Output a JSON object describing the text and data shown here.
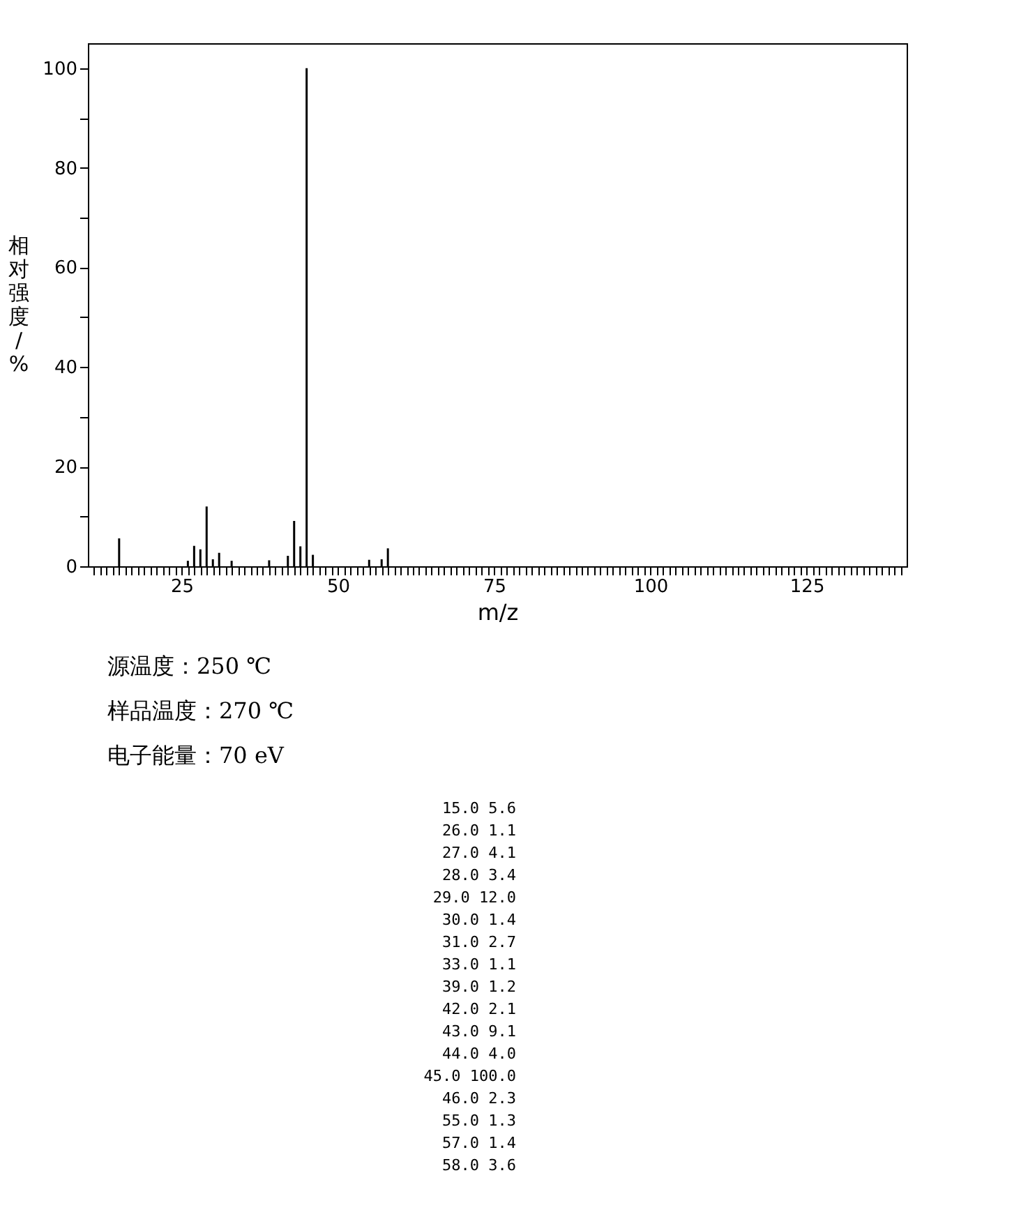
{
  "chart_data": [
    {
      "type": "bar",
      "xlabel": "m/z",
      "ylabel": "相对强度/%",
      "x": [
        15,
        26,
        27,
        28,
        29,
        30,
        31,
        33,
        39,
        42,
        43,
        44,
        45,
        46,
        55,
        57,
        58
      ],
      "values": [
        5.6,
        1.1,
        4.1,
        3.4,
        12.0,
        1.4,
        2.7,
        1.1,
        1.2,
        2.1,
        9.1,
        4.0,
        100.0,
        2.3,
        1.3,
        1.4,
        3.6
      ],
      "color": "#000000",
      "xlim": [
        10,
        141
      ],
      "ylim": [
        0,
        105
      ],
      "xticks": [
        {
          "value": 11,
          "label": null
        },
        {
          "value": 12,
          "label": null
        },
        {
          "value": 13,
          "label": null
        },
        {
          "value": 14,
          "label": null
        },
        {
          "value": 15,
          "label": null
        },
        {
          "value": 16,
          "label": null
        },
        {
          "value": 17,
          "label": null
        },
        {
          "value": 18,
          "label": null
        },
        {
          "value": 19,
          "label": null
        },
        {
          "value": 20,
          "label": null
        },
        {
          "value": 21,
          "label": null
        },
        {
          "value": 22,
          "label": null
        },
        {
          "value": 23,
          "label": null
        },
        {
          "value": 24,
          "label": null
        },
        25,
        {
          "value": 26,
          "label": null
        },
        {
          "value": 27,
          "label": null
        },
        {
          "value": 28,
          "label": null
        },
        {
          "value": 29,
          "label": null
        },
        {
          "value": 30,
          "label": null
        },
        {
          "value": 31,
          "label": null
        },
        {
          "value": 32,
          "label": null
        },
        {
          "value": 33,
          "label": null
        },
        {
          "value": 34,
          "label": null
        },
        {
          "value": 35,
          "label": null
        },
        {
          "value": 36,
          "label": null
        },
        {
          "value": 37,
          "label": null
        },
        {
          "value": 38,
          "label": null
        },
        {
          "value": 39,
          "label": null
        },
        {
          "value": 40,
          "label": null
        },
        {
          "value": 41,
          "label": null
        },
        {
          "value": 42,
          "label": null
        },
        {
          "value": 43,
          "label": null
        },
        {
          "value": 44,
          "label": null
        },
        {
          "value": 45,
          "label": null
        },
        {
          "value": 46,
          "label": null
        },
        {
          "value": 47,
          "label": null
        },
        {
          "value": 48,
          "label": null
        },
        {
          "value": 49,
          "label": null
        },
        50,
        {
          "value": 51,
          "label": null
        },
        {
          "value": 52,
          "label": null
        },
        {
          "value": 53,
          "label": null
        },
        {
          "value": 54,
          "label": null
        },
        {
          "value": 55,
          "label": null
        },
        {
          "value": 56,
          "label": null
        },
        {
          "value": 57,
          "label": null
        },
        {
          "value": 58,
          "label": null
        },
        {
          "value": 59,
          "label": null
        },
        {
          "value": 60,
          "label": null
        },
        {
          "value": 61,
          "label": null
        },
        {
          "value": 62,
          "label": null
        },
        {
          "value": 63,
          "label": null
        },
        {
          "value": 64,
          "label": null
        },
        {
          "value": 65,
          "label": null
        },
        {
          "value": 66,
          "label": null
        },
        {
          "value": 67,
          "label": null
        },
        {
          "value": 68,
          "label": null
        },
        {
          "value": 69,
          "label": null
        },
        {
          "value": 70,
          "label": null
        },
        {
          "value": 71,
          "label": null
        },
        {
          "value": 72,
          "label": null
        },
        {
          "value": 73,
          "label": null
        },
        {
          "value": 74,
          "label": null
        },
        75,
        {
          "value": 76,
          "label": null
        },
        {
          "value": 77,
          "label": null
        },
        {
          "value": 78,
          "label": null
        },
        {
          "value": 79,
          "label": null
        },
        {
          "value": 80,
          "label": null
        },
        {
          "value": 81,
          "label": null
        },
        {
          "value": 82,
          "label": null
        },
        {
          "value": 83,
          "label": null
        },
        {
          "value": 84,
          "label": null
        },
        {
          "value": 85,
          "label": null
        },
        {
          "value": 86,
          "label": null
        },
        {
          "value": 87,
          "label": null
        },
        {
          "value": 88,
          "label": null
        },
        {
          "value": 89,
          "label": null
        },
        {
          "value": 90,
          "label": null
        },
        {
          "value": 91,
          "label": null
        },
        {
          "value": 92,
          "label": null
        },
        {
          "value": 93,
          "label": null
        },
        {
          "value": 94,
          "label": null
        },
        {
          "value": 95,
          "label": null
        },
        {
          "value": 96,
          "label": null
        },
        {
          "value": 97,
          "label": null
        },
        {
          "value": 98,
          "label": null
        },
        {
          "value": 99,
          "label": null
        },
        100,
        {
          "value": 101,
          "label": null
        },
        {
          "value": 102,
          "label": null
        },
        {
          "value": 103,
          "label": null
        },
        {
          "value": 104,
          "label": null
        },
        {
          "value": 105,
          "label": null
        },
        {
          "value": 106,
          "label": null
        },
        {
          "value": 107,
          "label": null
        },
        {
          "value": 108,
          "label": null
        },
        {
          "value": 109,
          "label": null
        },
        {
          "value": 110,
          "label": null
        },
        {
          "value": 111,
          "label": null
        },
        {
          "value": 112,
          "label": null
        },
        {
          "value": 113,
          "label": null
        },
        {
          "value": 114,
          "label": null
        },
        {
          "value": 115,
          "label": null
        },
        {
          "value": 116,
          "label": null
        },
        {
          "value": 117,
          "label": null
        },
        {
          "value": 118,
          "label": null
        },
        {
          "value": 119,
          "label": null
        },
        {
          "value": 120,
          "label": null
        },
        {
          "value": 121,
          "label": null
        },
        {
          "value": 122,
          "label": null
        },
        {
          "value": 123,
          "label": null
        },
        {
          "value": 124,
          "label": null
        },
        125,
        {
          "value": 126,
          "label": null
        },
        {
          "value": 127,
          "label": null
        },
        {
          "value": 128,
          "label": null
        },
        {
          "value": 129,
          "label": null
        },
        {
          "value": 130,
          "label": null
        },
        {
          "value": 131,
          "label": null
        },
        {
          "value": 132,
          "label": null
        },
        {
          "value": 133,
          "label": null
        },
        {
          "value": 134,
          "label": null
        },
        {
          "value": 135,
          "label": null
        },
        {
          "value": 136,
          "label": null
        },
        {
          "value": 137,
          "label": null
        },
        {
          "value": 138,
          "label": null
        },
        {
          "value": 139,
          "label": null
        },
        {
          "value": 140,
          "label": null
        }
      ],
      "yticks": [
        0,
        {
          "value": 10,
          "label": null
        },
        20,
        {
          "value": 30,
          "label": null
        },
        40,
        {
          "value": 50,
          "label": null
        },
        60,
        {
          "value": 70,
          "label": null
        },
        80,
        {
          "value": 90,
          "label": null
        },
        100
      ],
      "annotations": [
        "源温度：250 ℃",
        "样品温度：270 ℃",
        "电子能量：70 eV"
      ]
    },
    {
      "type": "other",
      "categories": [
        "15.0",
        "26.0",
        "27.0",
        "28.0",
        "29.0",
        "30.0",
        "31.0",
        "33.0",
        "39.0",
        "42.0",
        "43.0",
        "44.0",
        "45.0",
        "46.0",
        "55.0",
        "57.0",
        "58.0"
      ],
      "value_labels": [
        "5.6",
        "1.1",
        "4.1",
        "3.4",
        "12.0",
        "1.4",
        "2.7",
        "1.1",
        "1.2",
        "2.1",
        "9.1",
        "4.0",
        "100.0",
        "2.3",
        "1.3",
        "1.4",
        "3.6"
      ]
    }
  ]
}
